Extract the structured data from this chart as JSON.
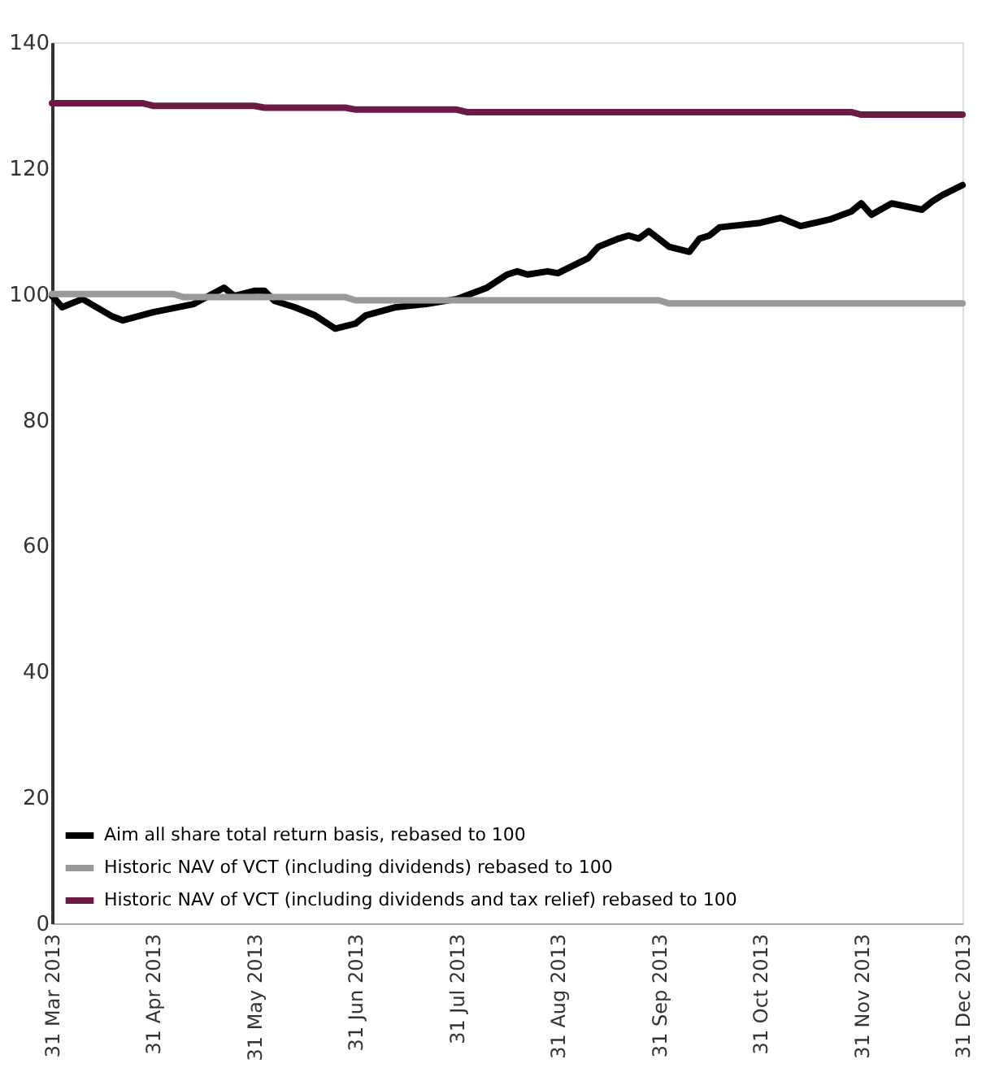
{
  "chart_data": {
    "type": "line",
    "ylim": [
      0,
      140
    ],
    "yticks": [
      0,
      20,
      40,
      60,
      80,
      100,
      120,
      140
    ],
    "categories": [
      "31 Mar 2013",
      null,
      null,
      null,
      null,
      null,
      null,
      null,
      null,
      null,
      "31 Apr 2013",
      null,
      null,
      null,
      null,
      null,
      null,
      null,
      null,
      null,
      "31 May 2013",
      null,
      null,
      null,
      null,
      null,
      null,
      null,
      null,
      null,
      "31 Jun 2013",
      null,
      null,
      null,
      null,
      null,
      null,
      null,
      null,
      null,
      "31 Jul 2013",
      null,
      null,
      null,
      null,
      null,
      null,
      null,
      null,
      null,
      "31 Aug 2013",
      null,
      null,
      null,
      null,
      null,
      null,
      null,
      null,
      null,
      "31 Sep 2013",
      null,
      null,
      null,
      null,
      null,
      null,
      null,
      null,
      null,
      "31 Oct 2013",
      null,
      null,
      null,
      null,
      null,
      null,
      null,
      null,
      null,
      "31 Nov 2013",
      null,
      null,
      null,
      null,
      null,
      null,
      null,
      null,
      null,
      "31 Dec 2013"
    ],
    "grid": false,
    "legend": "bottom left",
    "marker": "none",
    "line_style": "solid",
    "series": [
      {
        "name": "Aim all share total return basis, rebased to 100",
        "color": "#000000",
        "values": [
          99.7,
          97.9,
          null,
          99.2,
          null,
          null,
          96.4,
          95.8,
          null,
          null,
          97.1,
          null,
          null,
          null,
          98.4,
          null,
          null,
          101,
          99.7,
          null,
          100.5,
          100.5,
          98.9,
          null,
          97.9,
          null,
          96.6,
          null,
          94.5,
          null,
          95.3,
          96.6,
          null,
          null,
          97.9,
          null,
          null,
          98.4,
          null,
          null,
          99.2,
          null,
          null,
          101,
          null,
          103.1,
          103.6,
          103.1,
          null,
          103.6,
          103.3,
          null,
          null,
          105.7,
          107.5,
          null,
          108.8,
          109.3,
          108.8,
          110,
          null,
          107.5,
          null,
          106.7,
          108.8,
          109.3,
          110.6,
          null,
          null,
          null,
          111.3,
          null,
          112.1,
          null,
          110.8,
          null,
          null,
          111.9,
          null,
          113.1,
          114.4,
          112.6,
          null,
          114.4,
          null,
          null,
          113.4,
          114.7,
          115.7,
          null,
          117.3
        ]
      },
      {
        "name": "Historic NAV of VCT (including dividends) rebased to 100",
        "color": "#999999",
        "values": [
          100,
          null,
          null,
          null,
          null,
          null,
          null,
          null,
          null,
          null,
          null,
          null,
          100,
          99.5,
          null,
          null,
          null,
          null,
          null,
          null,
          null,
          null,
          null,
          null,
          null,
          null,
          null,
          null,
          null,
          99.5,
          99,
          null,
          null,
          null,
          null,
          null,
          null,
          null,
          null,
          null,
          null,
          null,
          null,
          null,
          null,
          null,
          null,
          null,
          null,
          null,
          null,
          null,
          null,
          null,
          null,
          null,
          null,
          null,
          null,
          null,
          99,
          98.5,
          null,
          null,
          null,
          null,
          null,
          null,
          null,
          null,
          null,
          null,
          null,
          null,
          null,
          null,
          null,
          null,
          null,
          null,
          null,
          null,
          null,
          null,
          null,
          null,
          null,
          null,
          null,
          null,
          98.5
        ]
      },
      {
        "name": "Historic NAV of VCT (including dividends and tax relief) rebased to 100",
        "color": "#6b1a45",
        "values": [
          130.3,
          null,
          null,
          null,
          null,
          null,
          null,
          null,
          null,
          130.3,
          129.9,
          null,
          null,
          null,
          null,
          null,
          null,
          null,
          null,
          null,
          129.9,
          129.6,
          null,
          null,
          null,
          null,
          null,
          null,
          null,
          129.6,
          129.3,
          null,
          null,
          null,
          null,
          null,
          null,
          null,
          null,
          null,
          129.3,
          128.9,
          null,
          null,
          null,
          null,
          null,
          null,
          null,
          null,
          null,
          null,
          null,
          null,
          null,
          null,
          null,
          null,
          null,
          null,
          null,
          null,
          null,
          null,
          null,
          null,
          null,
          null,
          null,
          null,
          null,
          null,
          null,
          null,
          null,
          null,
          null,
          null,
          null,
          128.9,
          128.5,
          null,
          null,
          null,
          null,
          null,
          null,
          null,
          null,
          null,
          128.5
        ]
      }
    ]
  }
}
